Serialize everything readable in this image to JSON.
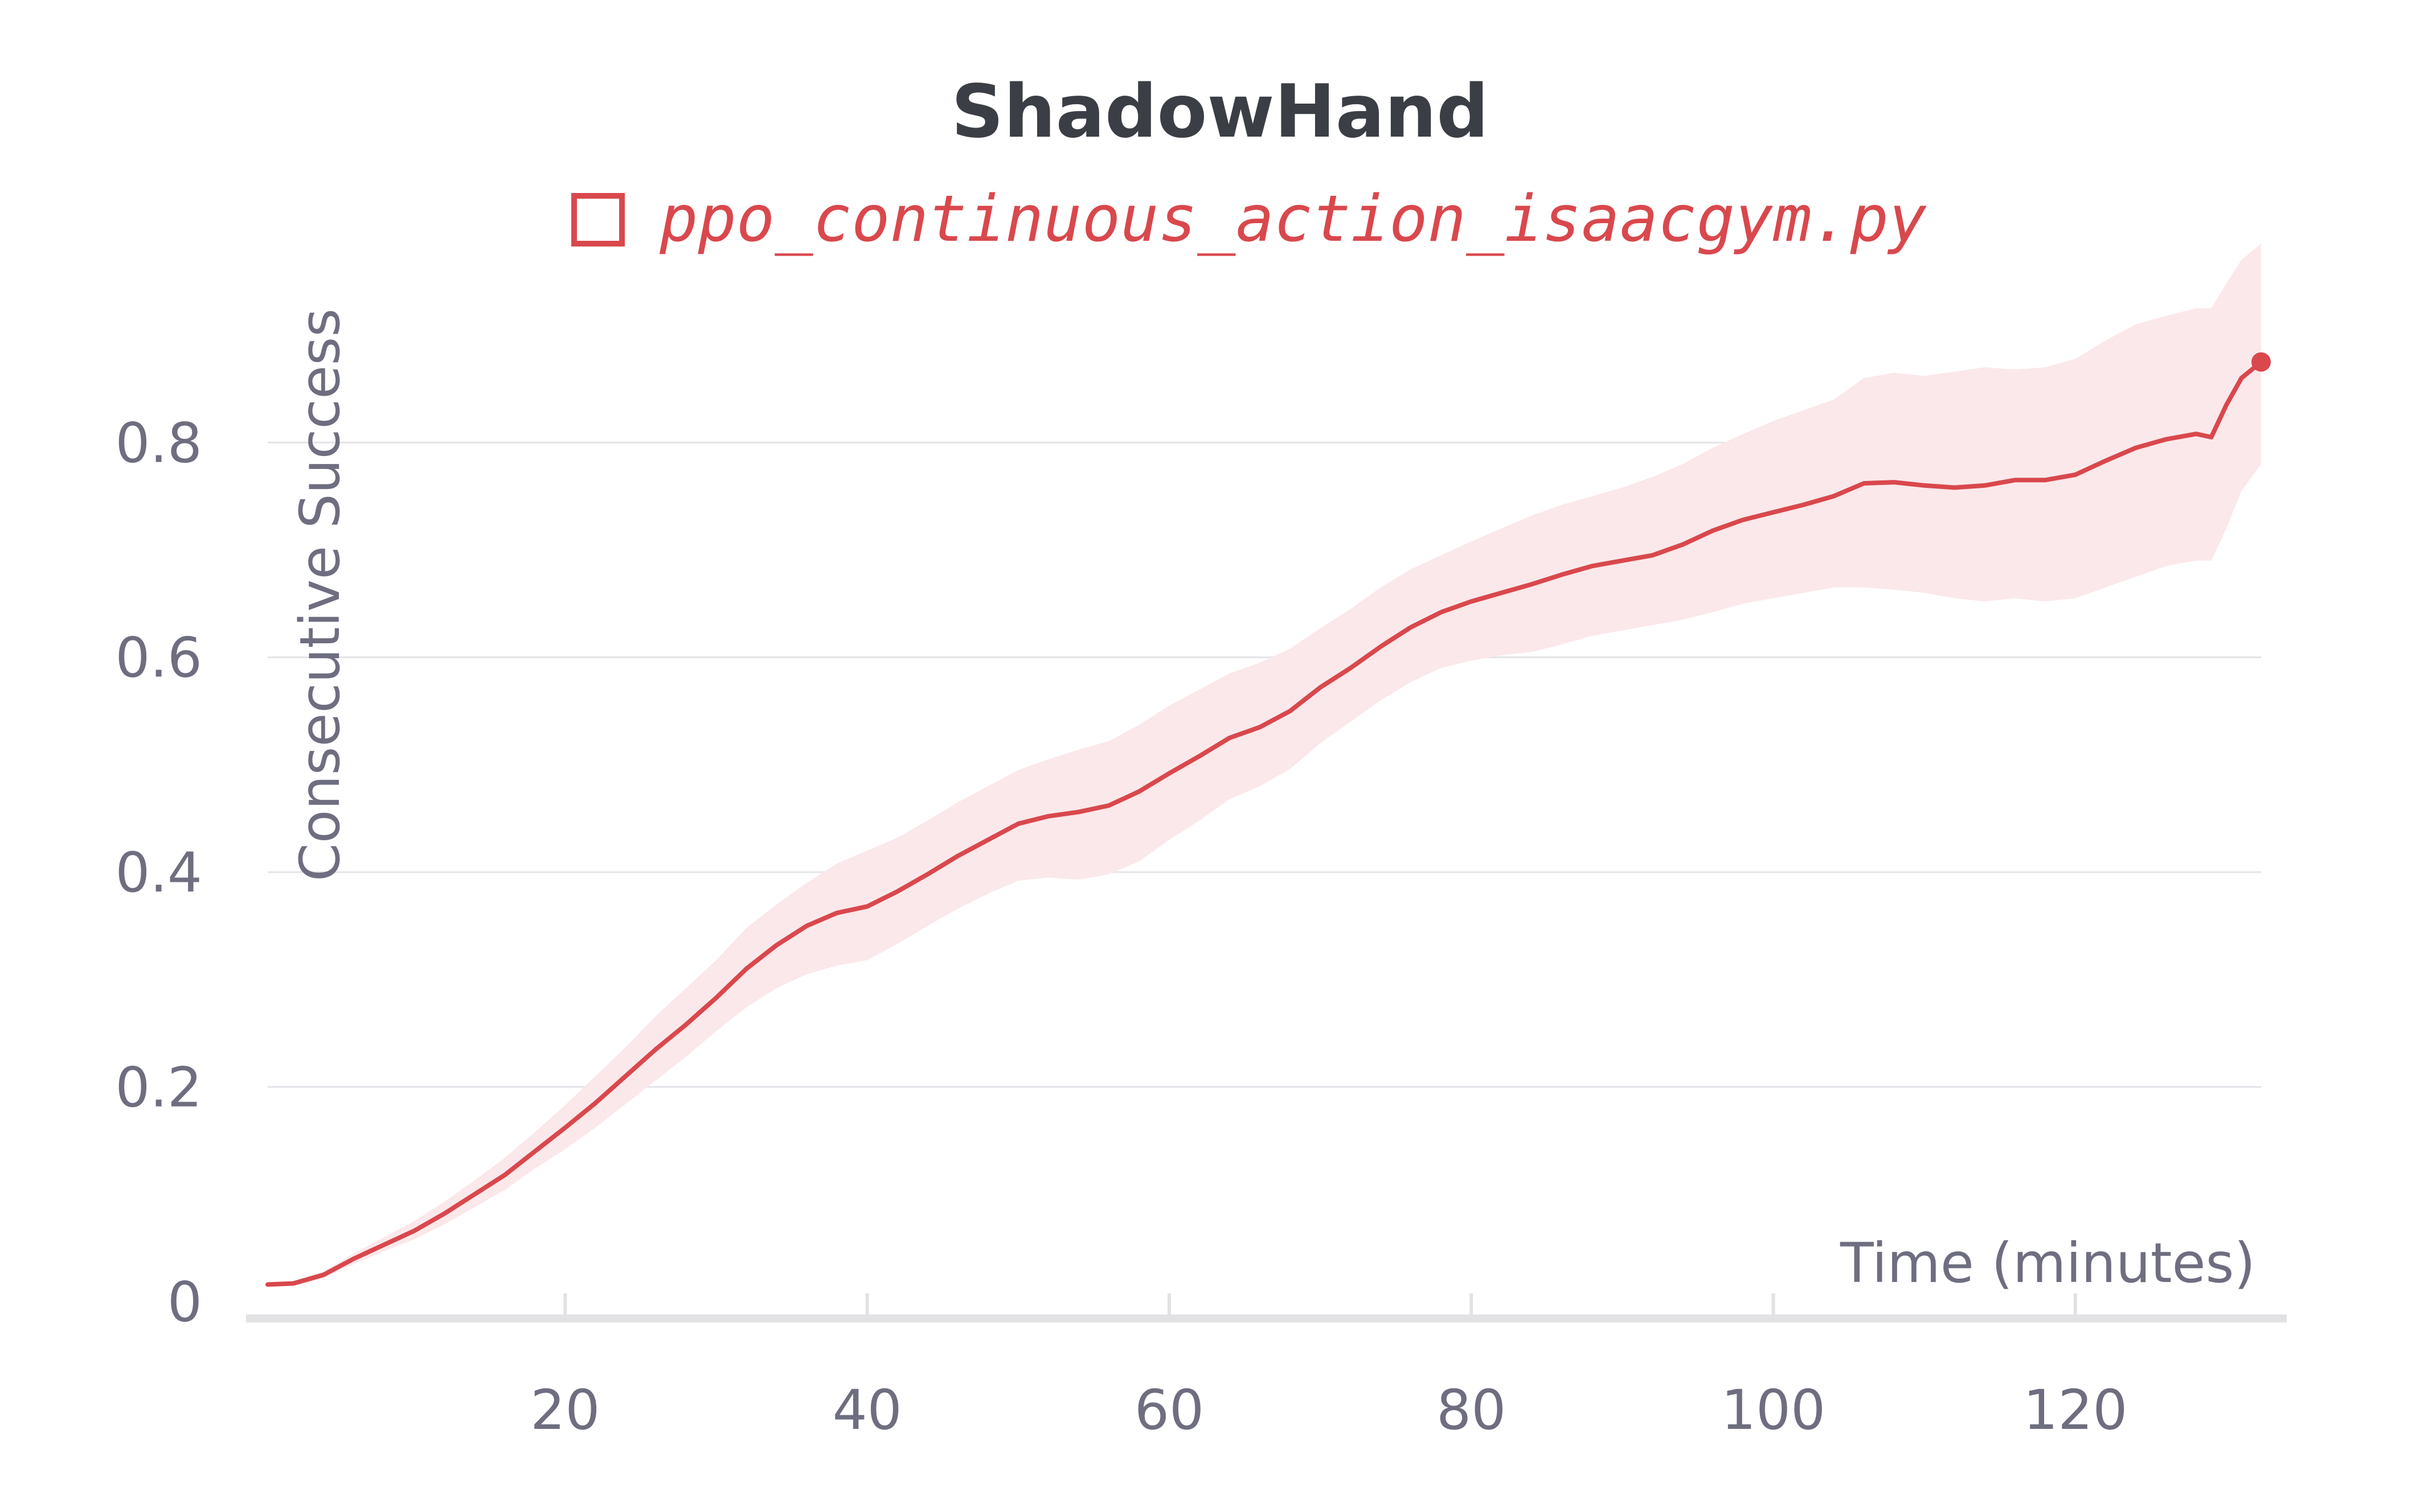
{
  "chart_data": {
    "type": "line",
    "title": "ShadowHand",
    "xlabel": "Time (minutes)",
    "ylabel": "Consecutive Success",
    "xlim": [
      0.3,
      132.3
    ],
    "ylim": [
      -0.005,
      1.0
    ],
    "x_ticks": [
      20,
      40,
      60,
      80,
      100,
      120
    ],
    "y_ticks": [
      0,
      0.2,
      0.4,
      0.6,
      0.8
    ],
    "x_tick_labels": [
      "20",
      "40",
      "60",
      "80",
      "100",
      "120"
    ],
    "y_tick_labels": [
      "0",
      "0.2",
      "0.4",
      "0.6",
      "0.8"
    ],
    "grid": true,
    "legend_position": "top",
    "series": [
      {
        "name": "ppo_continuous_action_isaacgym.py",
        "color": "#d9484d",
        "band_color": "#fbe8ea",
        "x": [
          0.3,
          2,
          4,
          6,
          8,
          10,
          12,
          14,
          16,
          18,
          20,
          22,
          24,
          26,
          28,
          30,
          32,
          34,
          36,
          38,
          40,
          42,
          44,
          46,
          48,
          50,
          52,
          54,
          56,
          58,
          60,
          62,
          64,
          66,
          68,
          70,
          72,
          74,
          76,
          78,
          80,
          82,
          84,
          86,
          88,
          90,
          92,
          94,
          96,
          98,
          100,
          102,
          104,
          106,
          108,
          110,
          112,
          114,
          116,
          118,
          120,
          122,
          124,
          126,
          128,
          129,
          130,
          131,
          132.3
        ],
        "y": [
          0.016,
          0.017,
          0.025,
          0.04,
          0.053,
          0.066,
          0.082,
          0.1,
          0.118,
          0.14,
          0.162,
          0.185,
          0.21,
          0.235,
          0.258,
          0.283,
          0.31,
          0.332,
          0.35,
          0.362,
          0.368,
          0.382,
          0.398,
          0.415,
          0.43,
          0.445,
          0.452,
          0.456,
          0.462,
          0.475,
          0.492,
          0.508,
          0.525,
          0.535,
          0.55,
          0.572,
          0.59,
          0.61,
          0.628,
          0.642,
          0.652,
          0.66,
          0.668,
          0.677,
          0.685,
          0.69,
          0.695,
          0.705,
          0.718,
          0.728,
          0.735,
          0.742,
          0.75,
          0.762,
          0.763,
          0.76,
          0.758,
          0.76,
          0.765,
          0.765,
          0.77,
          0.783,
          0.795,
          0.803,
          0.808,
          0.805,
          0.835,
          0.86,
          0.875
        ],
        "lower": [
          0.014,
          0.015,
          0.022,
          0.035,
          0.047,
          0.058,
          0.072,
          0.088,
          0.104,
          0.124,
          0.142,
          0.162,
          0.184,
          0.206,
          0.228,
          0.252,
          0.274,
          0.292,
          0.305,
          0.313,
          0.318,
          0.333,
          0.35,
          0.366,
          0.38,
          0.392,
          0.395,
          0.393,
          0.398,
          0.41,
          0.43,
          0.448,
          0.468,
          0.48,
          0.496,
          0.52,
          0.54,
          0.56,
          0.577,
          0.59,
          0.597,
          0.602,
          0.605,
          0.612,
          0.62,
          0.625,
          0.63,
          0.635,
          0.642,
          0.65,
          0.655,
          0.66,
          0.665,
          0.665,
          0.663,
          0.66,
          0.655,
          0.652,
          0.655,
          0.652,
          0.655,
          0.665,
          0.675,
          0.685,
          0.69,
          0.69,
          0.72,
          0.755,
          0.78
        ],
        "upper": [
          0.018,
          0.019,
          0.028,
          0.045,
          0.06,
          0.075,
          0.093,
          0.113,
          0.134,
          0.158,
          0.183,
          0.21,
          0.237,
          0.266,
          0.292,
          0.318,
          0.348,
          0.37,
          0.39,
          0.408,
          0.42,
          0.432,
          0.448,
          0.465,
          0.48,
          0.495,
          0.505,
          0.514,
          0.522,
          0.537,
          0.555,
          0.57,
          0.585,
          0.595,
          0.608,
          0.627,
          0.645,
          0.665,
          0.682,
          0.695,
          0.708,
          0.72,
          0.732,
          0.742,
          0.75,
          0.758,
          0.768,
          0.78,
          0.795,
          0.808,
          0.82,
          0.83,
          0.84,
          0.86,
          0.865,
          0.862,
          0.866,
          0.87,
          0.868,
          0.87,
          0.878,
          0.895,
          0.91,
          0.918,
          0.925,
          0.925,
          0.948,
          0.97,
          0.985
        ]
      }
    ]
  }
}
